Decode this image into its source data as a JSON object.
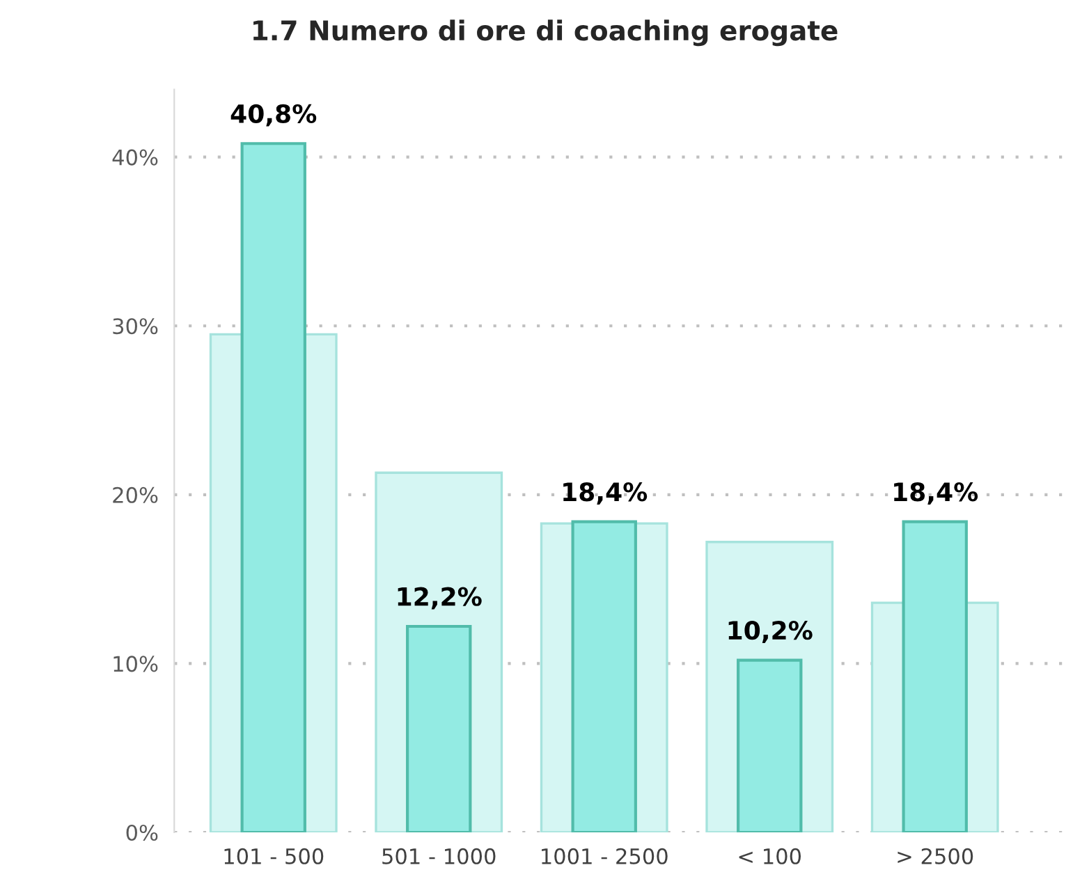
{
  "chart_data": {
    "type": "bar",
    "title": "1.7 Numero di ore di coaching erogate",
    "categories": [
      "101 - 500",
      "501 - 1000",
      "1001 - 2500",
      "< 100",
      "> 2500"
    ],
    "series": [
      {
        "color": "#d5f6f3",
        "values": [
          29.5,
          21.3,
          18.3,
          17.2,
          13.6
        ]
      },
      {
        "color": "#93ebe3",
        "values": [
          40.8,
          12.2,
          18.4,
          10.2,
          18.4
        ],
        "value_labels": [
          "40,8%",
          "12,2%",
          "18,4%",
          "10,2%",
          "18,4%"
        ]
      }
    ],
    "ylim": [
      0,
      44
    ],
    "yticks": [
      {
        "value": 0,
        "label": "0%"
      },
      {
        "value": 10,
        "label": "10%"
      },
      {
        "value": 20,
        "label": "20%"
      },
      {
        "value": 30,
        "label": "30%"
      },
      {
        "value": 40,
        "label": "40%"
      }
    ],
    "grid": "y",
    "legend": false
  }
}
